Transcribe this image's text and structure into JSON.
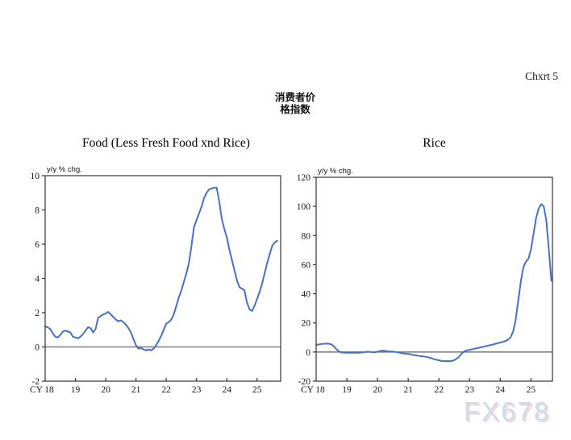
{
  "page": {
    "chart_number": "Chxrt 5",
    "heading_line1": "消费者价",
    "heading_line2": "格指数",
    "watermark": "FX678"
  },
  "colors": {
    "line": "#4472c4",
    "zero_line": "#7f7f7f",
    "axis": "#333333",
    "watermark_fill": "#cbdcf1",
    "watermark_shadow": "#e4aa9e"
  },
  "chart_data": [
    {
      "type": "line",
      "title": "Food (Less Fresh Food xnd Rice)",
      "ylabel": "y/y % chg.",
      "x_axis_prefix": "CY",
      "x_tick_labels": [
        "18",
        "19",
        "20",
        "21",
        "22",
        "23",
        "24",
        "25"
      ],
      "x_tick_years": [
        2018,
        2019,
        2020,
        2021,
        2022,
        2023,
        2024,
        2025
      ],
      "x_start_year": 2018,
      "frequency": "monthly",
      "xlim": [
        2018,
        2025.78
      ],
      "ylim": [
        -2,
        10
      ],
      "yticks": [
        -2,
        0,
        2,
        4,
        6,
        8,
        10
      ],
      "zero_line": true,
      "grid": false,
      "legend": "none",
      "series": [
        {
          "name": "Food (Less Fresh Food xnd Rice) y/y % chg.",
          "color": "#4472c4",
          "values": [
            1.2,
            1.15,
            1.05,
            0.8,
            0.6,
            0.55,
            0.7,
            0.9,
            0.95,
            0.9,
            0.85,
            0.6,
            0.55,
            0.5,
            0.6,
            0.75,
            0.95,
            1.15,
            1.1,
            0.85,
            1.05,
            1.7,
            1.8,
            1.9,
            1.95,
            2.05,
            1.9,
            1.75,
            1.6,
            1.5,
            1.55,
            1.45,
            1.3,
            1.1,
            0.85,
            0.45,
            0.1,
            -0.1,
            -0.05,
            -0.15,
            -0.2,
            -0.15,
            -0.2,
            -0.1,
            0.1,
            0.35,
            0.65,
            1.0,
            1.35,
            1.45,
            1.6,
            1.9,
            2.4,
            2.9,
            3.3,
            3.8,
            4.3,
            4.9,
            5.9,
            7.0,
            7.4,
            7.8,
            8.2,
            8.7,
            9.0,
            9.2,
            9.25,
            9.3,
            9.3,
            8.5,
            7.5,
            6.9,
            6.4,
            5.7,
            5.1,
            4.5,
            3.9,
            3.5,
            3.4,
            3.3,
            2.6,
            2.2,
            2.1,
            2.4,
            2.8,
            3.2,
            3.7,
            4.3,
            4.9,
            5.4,
            5.9,
            6.1,
            6.2
          ]
        }
      ]
    },
    {
      "type": "line",
      "title": "Rice",
      "ylabel": "y/y % chg.",
      "x_axis_prefix": "CY",
      "x_tick_labels": [
        "18",
        "19",
        "20",
        "21",
        "22",
        "23",
        "24",
        "25"
      ],
      "x_tick_years": [
        2018,
        2019,
        2020,
        2021,
        2022,
        2023,
        2024,
        2025
      ],
      "x_start_year": 2018,
      "frequency": "monthly",
      "xlim": [
        2018,
        2025.7
      ],
      "ylim": [
        -20,
        120
      ],
      "yticks": [
        -20,
        0,
        20,
        40,
        60,
        80,
        100,
        120
      ],
      "zero_line": true,
      "grid": false,
      "legend": "none",
      "series": [
        {
          "name": "Rice y/y % chg.",
          "color": "#4472c4",
          "values": [
            5.0,
            5.2,
            5.5,
            5.7,
            5.8,
            5.7,
            5.2,
            3.8,
            1.8,
            0.3,
            -0.3,
            -0.4,
            -0.4,
            -0.5,
            -0.5,
            -0.4,
            -0.5,
            -0.4,
            -0.3,
            0.0,
            0.2,
            0.1,
            -0.1,
            -0.2,
            0.3,
            0.7,
            1.0,
            0.8,
            0.5,
            0.4,
            0.3,
            0.1,
            -0.2,
            -0.6,
            -0.9,
            -1.1,
            -1.2,
            -1.6,
            -2.0,
            -2.3,
            -2.6,
            -2.8,
            -3.0,
            -3.3,
            -3.7,
            -4.2,
            -4.8,
            -5.3,
            -5.7,
            -6.1,
            -6.3,
            -6.2,
            -6.3,
            -6.1,
            -5.6,
            -4.5,
            -3.0,
            -0.8,
            0.5,
            1.2,
            1.5,
            1.9,
            2.3,
            2.7,
            3.1,
            3.5,
            3.9,
            4.3,
            4.7,
            5.1,
            5.6,
            6.1,
            6.5,
            7.0,
            7.6,
            8.4,
            10.0,
            14.0,
            22.0,
            35.0,
            48.0,
            58.0,
            62.0,
            64.0,
            70.5,
            81.0,
            92.0,
            98.5,
            101.5,
            100.0,
            90.5,
            70.0,
            49.0
          ]
        }
      ]
    }
  ]
}
